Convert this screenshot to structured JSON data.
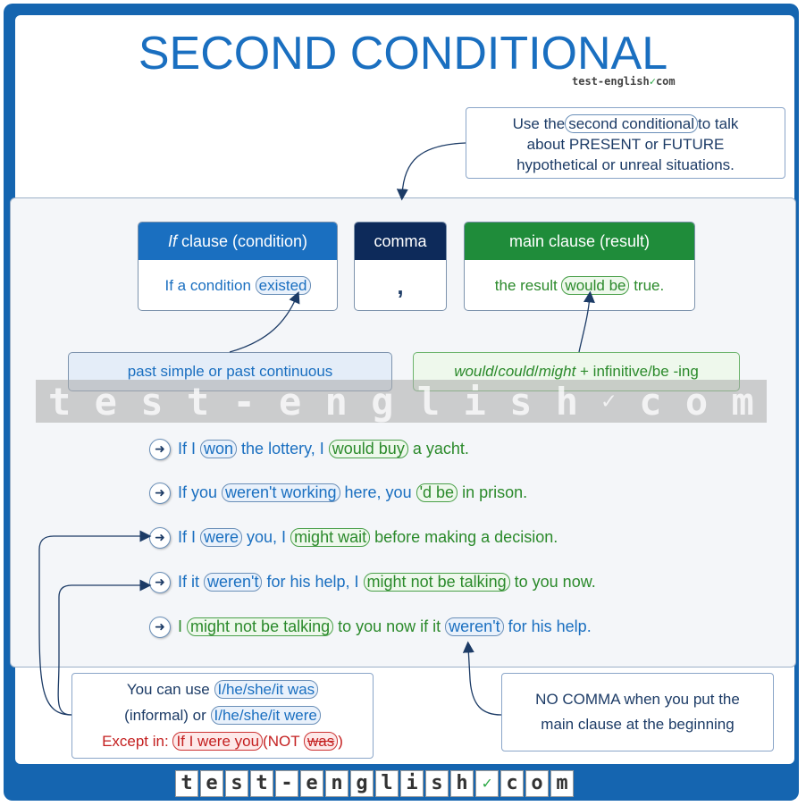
{
  "title": "SECOND CONDITIONAL",
  "brand": {
    "text": "test-english",
    "suffix": "com"
  },
  "top_note": {
    "before": "Use the",
    "pill": "second conditional",
    "after": "to talk",
    "line2": "about PRESENT or FUTURE",
    "line3": "hypothetical or unreal situations."
  },
  "if_clause": {
    "header_italic": "If",
    "header_rest": " clause (condition)",
    "body_text": "If a condition ",
    "body_pill": "existed"
  },
  "comma": {
    "header": "comma",
    "body": ","
  },
  "main_clause": {
    "header": "main clause (result)",
    "body_before": "the result ",
    "body_pill": "would be",
    "body_after": " true."
  },
  "label_left": "past simple or past continuous",
  "label_right": {
    "i1": "would",
    "s1": "/",
    "i2": "could",
    "s2": "/",
    "i3": "might",
    "rest": " + infinitive/be -ing"
  },
  "watermark": [
    "t",
    "e",
    "s",
    "t",
    "-",
    "e",
    "n",
    "g",
    "l",
    "i",
    "s",
    "h",
    "✓",
    "c",
    "o",
    "m"
  ],
  "examples": [
    {
      "a": "If I ",
      "p1": "won",
      "b": " the lottery, I ",
      "p2": "would buy",
      "c": " a yacht."
    },
    {
      "a": "If you ",
      "p1": "weren't working",
      "b": " here, you ",
      "p2": "'d be",
      "c": " in prison."
    },
    {
      "a": "If I ",
      "p1": "were",
      "b": " you, I ",
      "p2": "might wait",
      "c": " before making a decision."
    },
    {
      "a": "If it ",
      "p1": "weren't",
      "b": " for his help, I ",
      "p2": "might not be talking",
      "c": " to you now."
    }
  ],
  "example5": {
    "a": "I ",
    "p1": "might not be talking",
    "b": " to you now if it ",
    "p2": "weren't",
    "c": " for his help."
  },
  "note_left": {
    "l1": "You can use ",
    "p1": "I/he/she/it was",
    "l2": "(informal) or ",
    "p2": "I/he/she/it were",
    "l3": "Except in: ",
    "p3": "If I were you",
    "not_open": "(NOT ",
    "not_word": "was",
    "not_close": ")"
  },
  "note_right": {
    "line1": "NO COMMA when you put the",
    "line2": "main clause at the beginning"
  },
  "footer": [
    "t",
    "e",
    "s",
    "t",
    "-",
    "e",
    "n",
    "g",
    "l",
    "i",
    "s",
    "h",
    "✓",
    "c",
    "o",
    "m"
  ],
  "colors": {
    "frame": "#1565b0",
    "blue_header": "#1a6fc0",
    "comma_header": "#0d2a5a",
    "green_header": "#1f8c3a"
  }
}
